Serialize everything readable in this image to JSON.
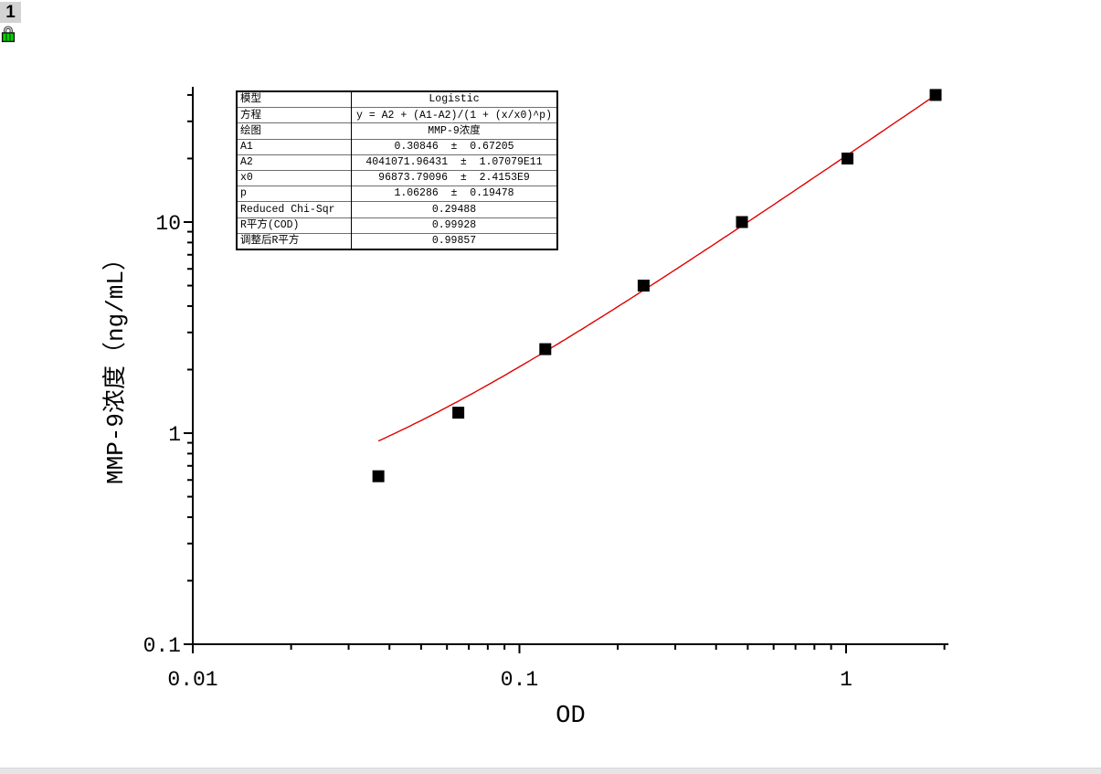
{
  "window": {
    "layer_badge": "1"
  },
  "fit_table": {
    "rows": [
      {
        "label": "模型",
        "value": "Logistic"
      },
      {
        "label": "方程",
        "value": "y = A2 + (A1-A2)/(1 + (x/x0)^p)"
      },
      {
        "label": "绘图",
        "value": "MMP-9浓度"
      },
      {
        "label": "A1",
        "value": "0.30846  ±  0.67205"
      },
      {
        "label": "A2",
        "value": "4041071.96431  ±  1.07079E11"
      },
      {
        "label": "x0",
        "value": "96873.79096  ±  2.4153E9"
      },
      {
        "label": "p",
        "value": "1.06286  ±  0.19478"
      },
      {
        "label": "Reduced Chi-Sqr",
        "value": "0.29488"
      },
      {
        "label": "R平方(COD)",
        "value": "0.99928"
      },
      {
        "label": "调整后R平方",
        "value": "0.99857"
      }
    ]
  },
  "chart_data": {
    "type": "scatter",
    "title": "",
    "xlabel": "OD",
    "ylabel": "MMP-9浓度（ng/mL）",
    "x_scale": "log",
    "y_scale": "log",
    "xlim": [
      0.01,
      2.06
    ],
    "ylim": [
      0.1,
      43.7
    ],
    "grid": false,
    "legend": "none",
    "x_ticks": {
      "major": [
        0.01,
        0.1,
        1
      ],
      "labels": [
        "0.01",
        "0.1",
        "1"
      ]
    },
    "y_ticks": {
      "major": [
        0.1,
        1,
        10
      ],
      "labels": [
        "0.1",
        "1",
        "10"
      ]
    },
    "series": [
      {
        "name": "MMP-9浓度",
        "type": "scatter",
        "marker": "filled-square",
        "color": "#000000",
        "points_od_conc": [
          [
            0.037,
            0.625
          ],
          [
            0.065,
            1.25
          ],
          [
            0.12,
            2.5
          ],
          [
            0.24,
            5
          ],
          [
            0.48,
            10
          ],
          [
            1.01,
            20
          ],
          [
            1.88,
            40
          ]
        ]
      },
      {
        "name": "Logistic fit",
        "type": "line",
        "color": "#e00000",
        "equation": "y = A2 + (A1-A2)/(1 + (x/x0)^p)",
        "params": {
          "A1": 0.30846,
          "A2": 4041071.96431,
          "x0": 96873.79096,
          "p": 1.06286
        },
        "od_range": [
          0.037,
          1.88
        ]
      }
    ]
  },
  "colors": {
    "axis": "#000000",
    "marker": "#000000",
    "curve": "#e00000",
    "badge_bg": "#d3d3d3",
    "lock_green": "#00d400",
    "bottom_bar": "#e6e6e6"
  }
}
